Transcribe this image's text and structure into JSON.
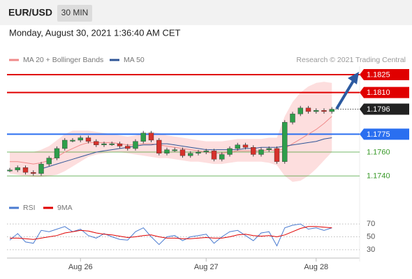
{
  "chart_data": [
    {
      "type": "candlestick",
      "title": "EUR/USD",
      "timeframe": "30 MIN",
      "subtitle": "Monday, August 30, 2021 1:36:40 AM CET",
      "credit": "Research © 2021 Trading Central",
      "categories": [
        null,
        null,
        null,
        null,
        null,
        null,
        null,
        null,
        null,
        "Aug 26",
        null,
        null,
        null,
        null,
        null,
        null,
        null,
        null,
        null,
        null,
        null,
        null,
        null,
        null,
        null,
        "Aug 27",
        null,
        null,
        null,
        null,
        null,
        null,
        null,
        null,
        null,
        null,
        null,
        null,
        null,
        "Aug 28",
        null,
        null
      ],
      "values": [
        1.1745,
        1.1747,
        1.1743,
        1.1742,
        1.175,
        1.1755,
        1.1763,
        1.177,
        1.177,
        1.1772,
        1.1769,
        1.1766,
        1.1767,
        1.1767,
        1.1765,
        1.1763,
        1.1769,
        1.1776,
        1.177,
        1.1759,
        1.1762,
        1.1762,
        1.1757,
        1.1759,
        1.176,
        1.1761,
        1.1754,
        1.1758,
        1.1763,
        1.1766,
        1.1764,
        1.1758,
        1.1762,
        1.1763,
        1.1752,
        1.1785,
        1.1792,
        1.1797,
        1.1794,
        1.1795,
        1.1794,
        1.1796
      ],
      "up_color": "#2e9e4a",
      "down_color": "#d6312b",
      "series": [
        {
          "name": "MA 20 + Bollinger Bands",
          "color": "#f08a8a",
          "band_color": "#fdd6d6",
          "values": [
            1.1752,
            1.1752,
            1.1751,
            1.175,
            1.1751,
            1.1753,
            1.1756,
            1.176,
            1.1763,
            1.1766,
            1.1768,
            1.1768,
            1.1768,
            1.1768,
            1.1767,
            1.1766,
            1.1766,
            1.1767,
            1.1767,
            1.1766,
            1.1765,
            1.1764,
            1.1763,
            1.1762,
            1.1761,
            1.176,
            1.1759,
            1.1759,
            1.176,
            1.1761,
            1.1761,
            1.1761,
            1.1761,
            1.1762,
            1.1761,
            1.1763,
            1.1767,
            1.1771,
            1.1775,
            1.1779,
            1.1784,
            1.179
          ],
          "upper": [
            1.176,
            1.176,
            1.176,
            1.176,
            1.1762,
            1.1765,
            1.177,
            1.1775,
            1.1778,
            1.1778,
            1.1778,
            1.1777,
            1.1776,
            1.1775,
            1.1774,
            1.1773,
            1.1774,
            1.1776,
            1.1777,
            1.1776,
            1.1774,
            1.1773,
            1.1772,
            1.1771,
            1.177,
            1.1769,
            1.1769,
            1.1769,
            1.177,
            1.1771,
            1.1771,
            1.1771,
            1.1771,
            1.1772,
            1.1772,
            1.179,
            1.1802,
            1.181,
            1.1815,
            1.1818,
            1.1819,
            1.1818
          ],
          "lower": [
            1.1742,
            1.1741,
            1.174,
            1.1739,
            1.1739,
            1.174,
            1.1741,
            1.1744,
            1.1748,
            1.1752,
            1.1756,
            1.1758,
            1.1759,
            1.176,
            1.176,
            1.1759,
            1.1758,
            1.1757,
            1.1756,
            1.1755,
            1.1755,
            1.1754,
            1.1753,
            1.1752,
            1.1752,
            1.1751,
            1.175,
            1.175,
            1.1751,
            1.1752,
            1.1752,
            1.1752,
            1.1752,
            1.1751,
            1.1749,
            1.174,
            1.1735,
            1.1736,
            1.174,
            1.1746,
            1.1753,
            1.176
          ]
        },
        {
          "name": "MA 50",
          "color": "#2f5597",
          "values": [
            null,
            null,
            null,
            null,
            1.1746,
            1.1748,
            1.175,
            1.1752,
            1.1754,
            1.1756,
            1.1758,
            1.176,
            1.1761,
            1.1762,
            1.1763,
            1.1764,
            1.1765,
            1.1766,
            1.1766,
            1.1767,
            1.1767,
            1.1766,
            1.1765,
            1.1764,
            1.1763,
            1.1762,
            1.1762,
            1.1762,
            1.1762,
            1.1762,
            1.1763,
            1.1763,
            1.1764,
            1.1764,
            1.1764,
            1.1765,
            1.1766,
            1.1767,
            1.1768,
            1.1769,
            1.1771,
            1.1772
          ]
        }
      ],
      "levels": [
        {
          "value": 1.1825,
          "label": "1.1825",
          "color": "#e00000",
          "style": "tag"
        },
        {
          "value": 1.181,
          "label": "1.1810",
          "color": "#e00000",
          "style": "tag"
        },
        {
          "value": 1.1775,
          "label": "1.1775",
          "color": "#2a6ff0",
          "style": "tag"
        },
        {
          "value": 1.176,
          "label": "1.1760",
          "color": "#3a9a2a",
          "style": "text"
        },
        {
          "value": 1.174,
          "label": "1.1740",
          "color": "#3a9a2a",
          "style": "text"
        }
      ],
      "last_price": {
        "value": 1.1796,
        "label": "1.1796",
        "color": "#222222"
      },
      "ylim": [
        1.1722,
        1.1832
      ]
    },
    {
      "type": "line",
      "series": [
        {
          "name": "RSI",
          "color": "#4a7bd0",
          "values": [
            45,
            55,
            42,
            40,
            60,
            58,
            62,
            66,
            58,
            62,
            52,
            48,
            55,
            50,
            46,
            45,
            58,
            64,
            50,
            38,
            50,
            52,
            44,
            50,
            52,
            54,
            40,
            50,
            58,
            60,
            52,
            44,
            56,
            58,
            36,
            64,
            68,
            70,
            62,
            64,
            60,
            64
          ]
        },
        {
          "name": "9MA",
          "color": "#e00000",
          "values": [
            48,
            48,
            47,
            46,
            48,
            50,
            52,
            56,
            58,
            60,
            59,
            56,
            54,
            53,
            51,
            49,
            50,
            52,
            53,
            50,
            48,
            48,
            47,
            47,
            48,
            49,
            48,
            48,
            50,
            53,
            54,
            52,
            51,
            52,
            50,
            53,
            58,
            63,
            66,
            66,
            65,
            64
          ]
        }
      ],
      "ylim": [
        17,
        82
      ],
      "yticks": [
        30,
        50,
        70
      ]
    }
  ]
}
